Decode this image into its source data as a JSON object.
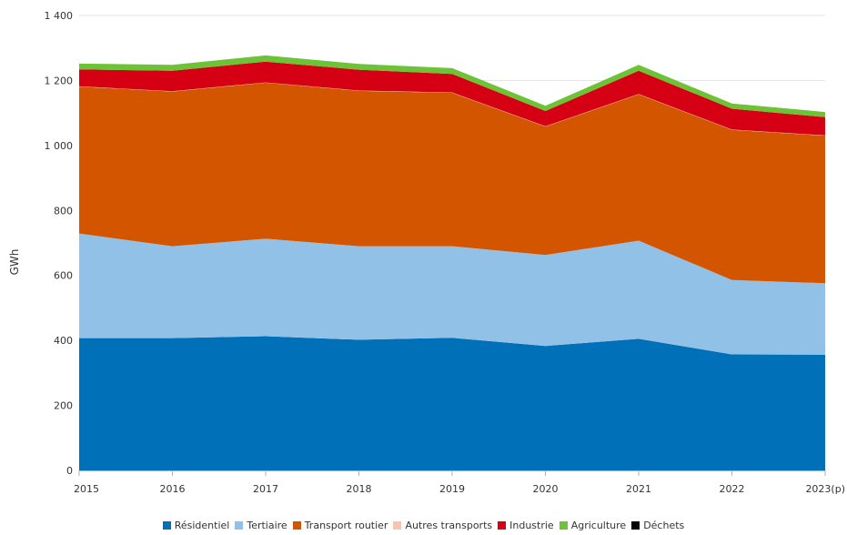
{
  "chart_data": {
    "type": "area",
    "stacked": true,
    "categories": [
      "2015",
      "2016",
      "2017",
      "2018",
      "2019",
      "2020",
      "2021",
      "2022",
      "2023(p)"
    ],
    "ylabel": "GWh",
    "ylim": [
      0,
      1400
    ],
    "yticks": [
      0,
      200,
      400,
      600,
      800,
      1000,
      1200,
      1400
    ],
    "ytick_labels": [
      "0",
      "200",
      "400",
      "600",
      "800",
      "1 000",
      "1 200",
      "1 400"
    ],
    "grid": true,
    "legend_position": "bottom",
    "series": [
      {
        "name": "Résidentiel",
        "color": "#0070b8",
        "values": [
          407,
          407,
          413,
          402,
          408,
          383,
          405,
          357,
          356
        ]
      },
      {
        "name": "Tertiaire",
        "color": "#92c1e8",
        "values": [
          322,
          283,
          300,
          288,
          282,
          280,
          302,
          229,
          220
        ]
      },
      {
        "name": "Transport routier",
        "color": "#d45500",
        "values": [
          452,
          476,
          480,
          478,
          472,
          395,
          450,
          462,
          454
        ]
      },
      {
        "name": "Autres transports",
        "color": "#f6c4b1",
        "values": [
          1,
          1,
          1,
          1,
          1,
          1,
          1,
          1,
          1
        ]
      },
      {
        "name": "Industrie",
        "color": "#d60014",
        "values": [
          52,
          63,
          64,
          64,
          57,
          47,
          72,
          64,
          56
        ]
      },
      {
        "name": "Agriculture",
        "color": "#6cc335",
        "values": [
          18,
          18,
          19,
          18,
          18,
          16,
          18,
          16,
          16
        ]
      },
      {
        "name": "Déchets",
        "color": "#000000",
        "values": [
          0,
          0,
          0,
          0,
          0,
          0,
          0,
          0,
          0
        ]
      }
    ]
  }
}
